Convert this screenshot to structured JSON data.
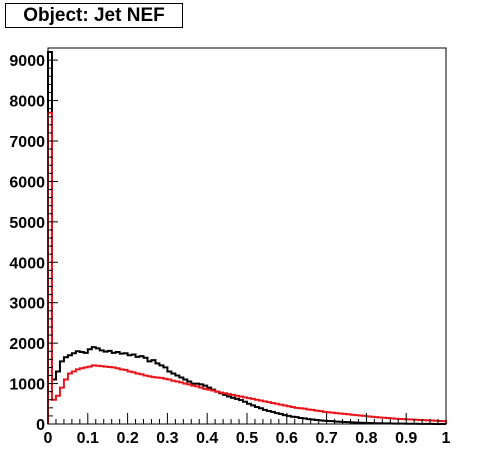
{
  "title": "Object: Jet NEF",
  "colors": {
    "black_series": "#000000",
    "red_series": "#e8141c",
    "frame": "#000000"
  },
  "chart_data": {
    "type": "histogram",
    "title": "Object: Jet NEF",
    "xlabel": "",
    "ylabel": "",
    "xlim": [
      0,
      1
    ],
    "ylim": [
      0,
      9300
    ],
    "xticks": [
      0,
      0.1,
      0.2,
      0.3,
      0.4,
      0.5,
      0.6,
      0.7,
      0.8,
      0.9,
      1
    ],
    "xtick_labels": [
      "0",
      "0.1",
      "0.2",
      "0.3",
      "0.4",
      "0.5",
      "0.6",
      "0.7",
      "0.8",
      "0.9",
      "1"
    ],
    "yticks": [
      0,
      1000,
      2000,
      3000,
      4000,
      5000,
      6000,
      7000,
      8000,
      9000
    ],
    "ytick_labels": [
      "0",
      "1000",
      "2000",
      "3000",
      "4000",
      "5000",
      "6000",
      "7000",
      "8000",
      "9000"
    ],
    "bin_width": 0.01,
    "series": [
      {
        "color": "#000000",
        "values": [
          9200,
          1100,
          1300,
          1550,
          1650,
          1700,
          1750,
          1800,
          1780,
          1760,
          1850,
          1900,
          1870,
          1820,
          1790,
          1810,
          1760,
          1780,
          1740,
          1750,
          1700,
          1720,
          1660,
          1680,
          1640,
          1550,
          1580,
          1500,
          1450,
          1400,
          1300,
          1250,
          1200,
          1150,
          1100,
          1050,
          1000,
          1000,
          980,
          950,
          900,
          850,
          800,
          760,
          720,
          680,
          650,
          620,
          590,
          550,
          500,
          460,
          420,
          390,
          350,
          320,
          300,
          270,
          250,
          220,
          200,
          180,
          170,
          150,
          140,
          120,
          110,
          100,
          90,
          80,
          75,
          70,
          60,
          55,
          50,
          45,
          40,
          35,
          30,
          28,
          25,
          22,
          20,
          18,
          16,
          14,
          12,
          10,
          9,
          8,
          7,
          6,
          5,
          4,
          3,
          2,
          2,
          1,
          1,
          1
        ]
      },
      {
        "color": "#e8141c",
        "values": [
          7700,
          600,
          700,
          900,
          1100,
          1250,
          1300,
          1350,
          1380,
          1400,
          1420,
          1450,
          1440,
          1430,
          1420,
          1410,
          1400,
          1380,
          1350,
          1340,
          1300,
          1280,
          1250,
          1230,
          1200,
          1180,
          1160,
          1150,
          1140,
          1120,
          1100,
          1070,
          1050,
          1030,
          1000,
          980,
          950,
          930,
          900,
          870,
          850,
          830,
          800,
          780,
          760,
          740,
          720,
          700,
          680,
          660,
          640,
          620,
          600,
          580,
          560,
          540,
          520,
          500,
          480,
          460,
          440,
          420,
          400,
          390,
          380,
          360,
          350,
          330,
          320,
          300,
          290,
          280,
          270,
          260,
          250,
          240,
          230,
          220,
          210,
          200,
          190,
          180,
          170,
          160,
          155,
          150,
          140,
          130,
          125,
          120,
          115,
          110,
          105,
          100,
          95,
          90,
          85,
          80,
          75,
          70
        ]
      }
    ]
  }
}
